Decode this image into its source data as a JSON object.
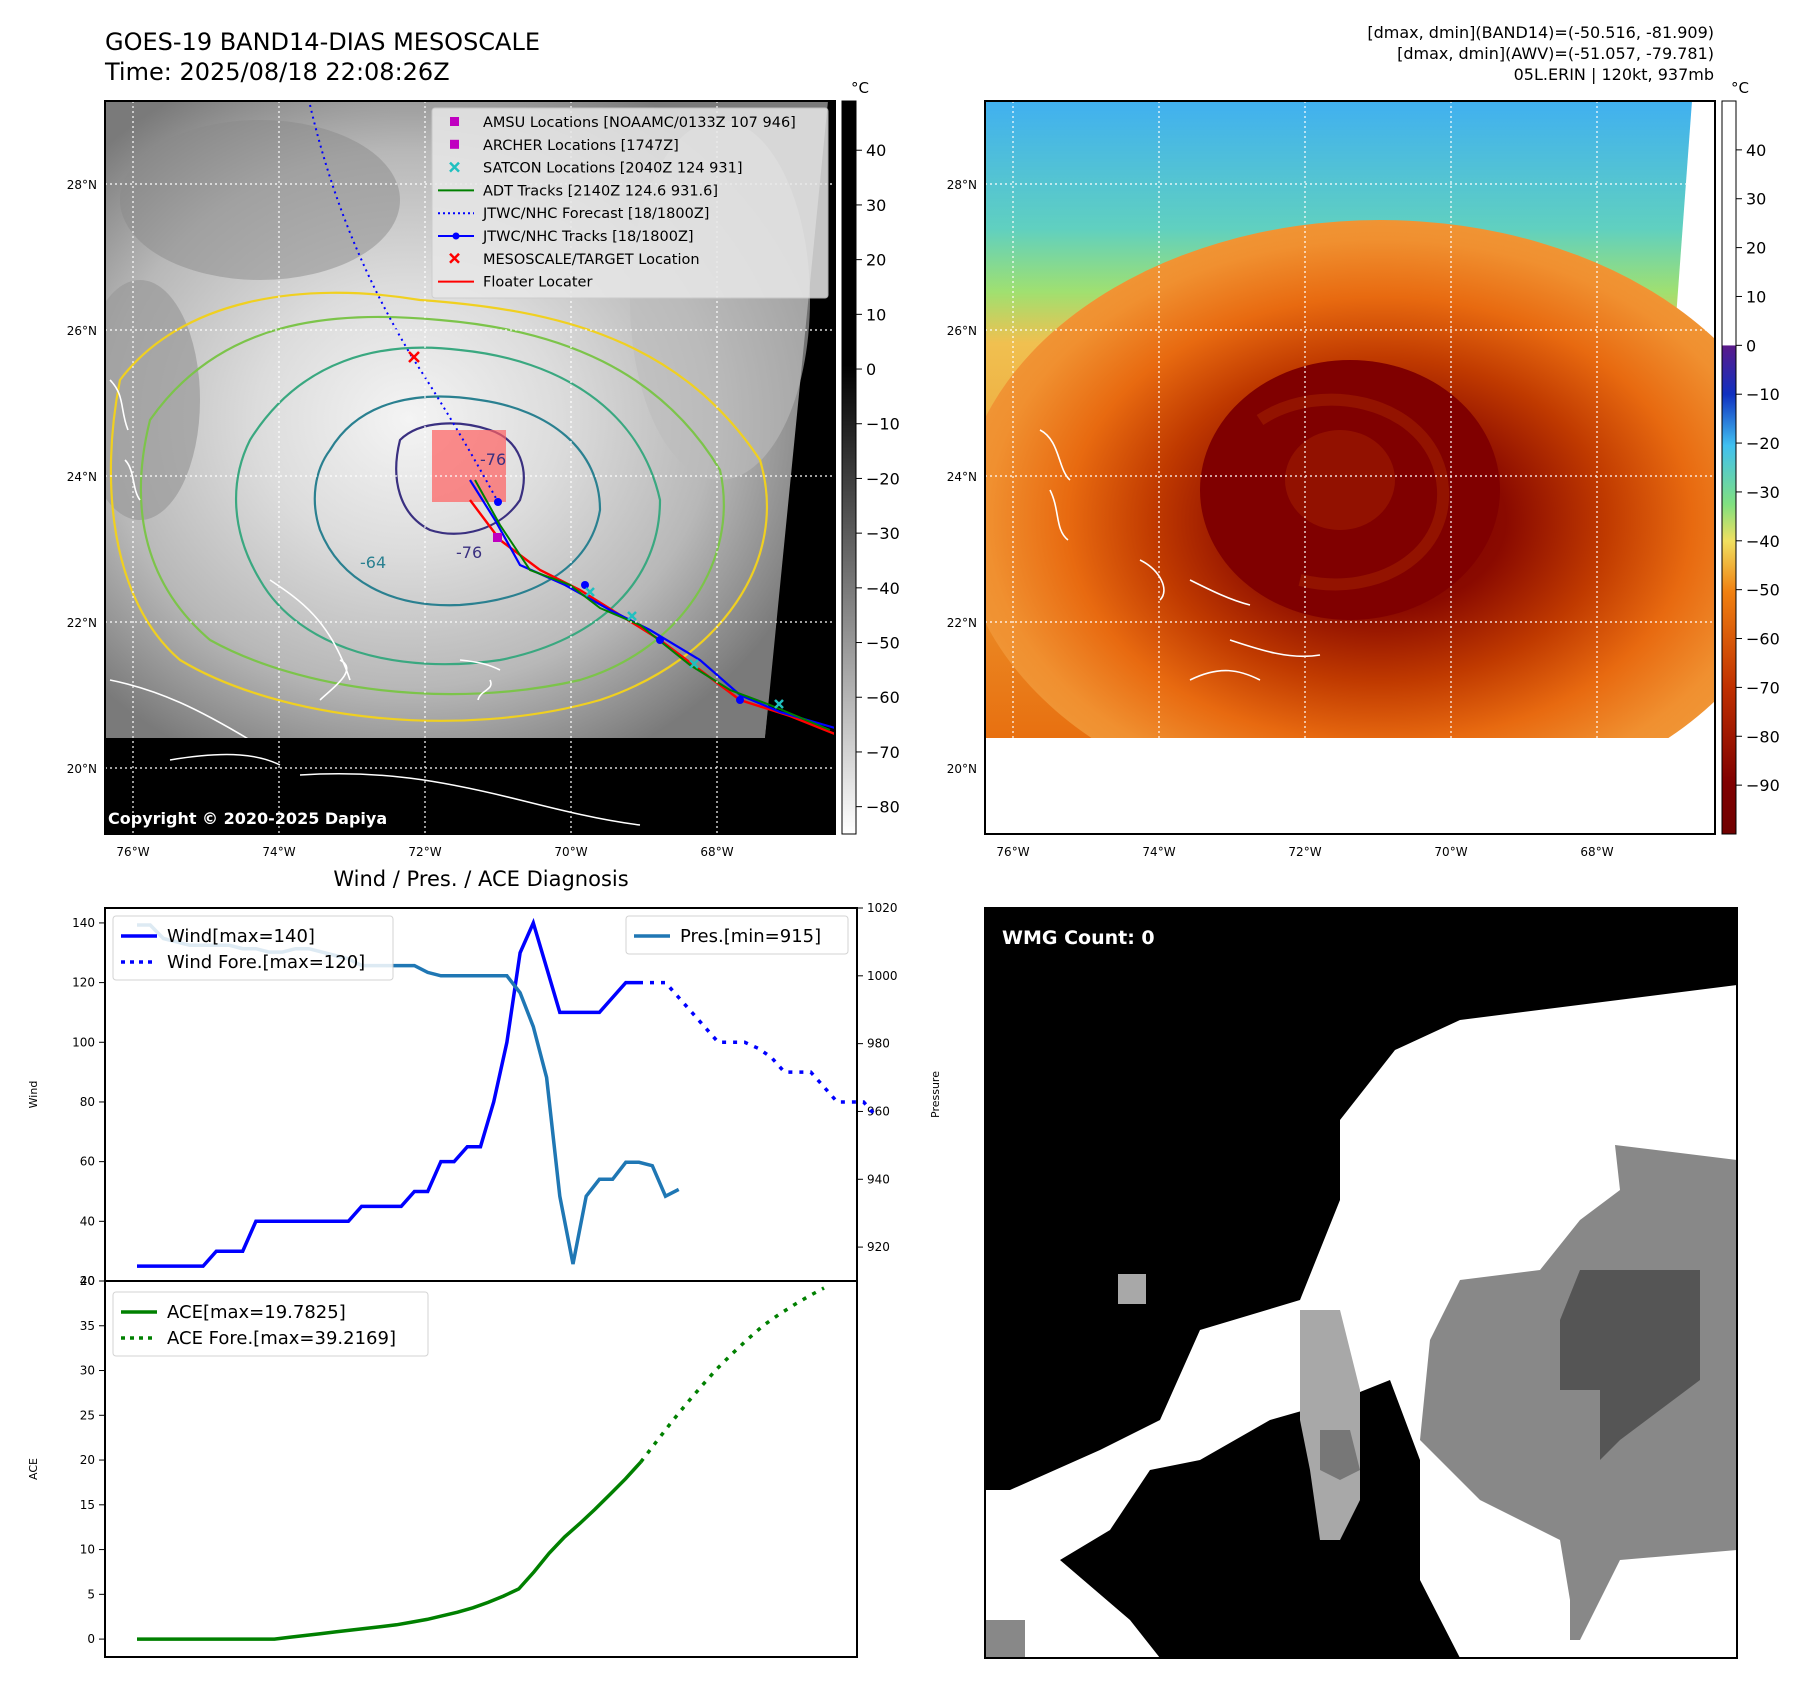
{
  "header": {
    "title_line1": "GOES-19 BAND14-DIAS MESOSCALE",
    "title_line2": "Time: 2025/08/18 22:08:26Z",
    "info_line1": "[dmax, dmin](BAND14)=(-50.516, -81.909)",
    "info_line2": "[dmax, dmin](AWV)=(-51.057, -79.781)",
    "info_line3": "05L.ERIN | 120kt, 937mb"
  },
  "map": {
    "lat_labels": [
      "28°N",
      "26°N",
      "24°N",
      "22°N",
      "20°N"
    ],
    "lat_values": [
      28,
      26,
      24,
      22,
      20
    ],
    "lon_labels": [
      "76°W",
      "74°W",
      "72°W",
      "70°W",
      "68°W"
    ],
    "lon_values": [
      -76,
      -74,
      -72,
      -70,
      -68
    ],
    "copyright": "Copyright © 2020-2025 Dapiya",
    "contour_labels": [
      "-76",
      "-64",
      "-76"
    ],
    "legend": [
      {
        "label": "AMSU Locations [NOAAMC/0133Z 107 946]",
        "marker": "square",
        "color": "#c000c0"
      },
      {
        "label": "ARCHER Locations [1747Z]",
        "marker": "square",
        "color": "#c000c0"
      },
      {
        "label": "SATCON Locations [2040Z 124 931]",
        "marker": "x",
        "color": "#20c0c0"
      },
      {
        "label": "ADT Tracks [2140Z 124.6 931.6]",
        "marker": "line",
        "color": "#008000"
      },
      {
        "label": "JTWC/NHC Forecast [18/1800Z]",
        "marker": "dotted",
        "color": "#0000ff"
      },
      {
        "label": "JTWC/NHC Tracks [18/1800Z]",
        "marker": "line-dot",
        "color": "#0000ff"
      },
      {
        "label": "MESOSCALE/TARGET Location",
        "marker": "x",
        "color": "#ff0000"
      },
      {
        "label": "Floater Locater",
        "marker": "line",
        "color": "#ff0000"
      }
    ]
  },
  "colorbar_gray": {
    "unit": "°C",
    "ticks": [
      "40",
      "30",
      "20",
      "10",
      "0",
      "−10",
      "−20",
      "−30",
      "−40",
      "−50",
      "−60",
      "−70",
      "−80"
    ],
    "values": [
      40,
      30,
      20,
      10,
      0,
      -10,
      -20,
      -30,
      -40,
      -50,
      -60,
      -70,
      -80
    ],
    "range": [
      -85,
      49
    ]
  },
  "colorbar_color": {
    "unit": "°C",
    "ticks": [
      "40",
      "30",
      "20",
      "10",
      "0",
      "−10",
      "−20",
      "−30",
      "−40",
      "−50",
      "−60",
      "−70",
      "−80",
      "−90"
    ],
    "values": [
      40,
      30,
      20,
      10,
      0,
      -10,
      -20,
      -30,
      -40,
      -50,
      -60,
      -70,
      -80,
      -90
    ],
    "range": [
      -100,
      50
    ]
  },
  "chart_data": [
    {
      "type": "line",
      "title": "Wind / Pres. / ACE Diagnosis",
      "ylabel": "Wind",
      "y2label": "Pressure",
      "ylim": [
        20,
        145
      ],
      "y2lim": [
        910,
        1020
      ],
      "yticks": [
        20,
        40,
        60,
        80,
        100,
        120,
        140
      ],
      "y2ticks": [
        920,
        940,
        960,
        980,
        1000,
        1020
      ],
      "series": [
        {
          "name": "Wind[max=140]",
          "color": "#0000ff",
          "style": "solid",
          "values": [
            25,
            25,
            25,
            25,
            25,
            25,
            30,
            30,
            30,
            40,
            40,
            40,
            40,
            40,
            40,
            40,
            40,
            45,
            45,
            45,
            45,
            50,
            50,
            60,
            60,
            65,
            65,
            80,
            100,
            130,
            140,
            125,
            110,
            110,
            110,
            110,
            115,
            120,
            120
          ]
        },
        {
          "name": "Wind Fore.[max=120]",
          "color": "#0000ff",
          "style": "dotted",
          "offset": 38,
          "values": [
            120,
            120,
            120,
            115,
            110,
            105,
            100,
            100,
            100,
            98,
            95,
            90,
            90,
            90,
            85,
            80,
            80,
            80,
            75
          ]
        },
        {
          "name": "Pres.[min=915]",
          "color": "#1f77b4",
          "style": "solid",
          "axis": "right",
          "values": [
            1015,
            1015,
            1011,
            1010,
            1009,
            1009,
            1009,
            1009,
            1008,
            1008,
            1007,
            1007,
            1008,
            1008,
            1007,
            1006,
            1005,
            1003,
            1003,
            1003,
            1003,
            1003,
            1001,
            1000,
            1000,
            1000,
            1000,
            1000,
            1000,
            995,
            985,
            970,
            935,
            915,
            935,
            940,
            940,
            945,
            945,
            944,
            935,
            937
          ]
        }
      ]
    },
    {
      "type": "line",
      "ylabel": "ACE",
      "ylim": [
        -2,
        40
      ],
      "yticks": [
        0,
        5,
        10,
        15,
        20,
        25,
        30,
        35,
        40
      ],
      "series": [
        {
          "name": "ACE[max=19.7825]",
          "color": "#008000",
          "style": "solid",
          "values": [
            0,
            0,
            0,
            0,
            0,
            0,
            0,
            0,
            0,
            0,
            0.2,
            0.4,
            0.6,
            0.8,
            1.0,
            1.2,
            1.4,
            1.6,
            1.9,
            2.2,
            2.6,
            3.0,
            3.5,
            4.1,
            4.8,
            5.6,
            7.5,
            9.6,
            11.4,
            12.9,
            14.5,
            16.2,
            17.9,
            19.78
          ]
        },
        {
          "name": "ACE Fore.[max=39.2169]",
          "color": "#008000",
          "style": "dotted",
          "offset": 33,
          "values": [
            19.78,
            22.0,
            24.2,
            26.3,
            28.3,
            30.2,
            31.9,
            33.5,
            35.0,
            36.2,
            37.3,
            38.3,
            39.22
          ]
        }
      ]
    }
  ],
  "wmg": {
    "count_label": "WMG Count: 0"
  }
}
